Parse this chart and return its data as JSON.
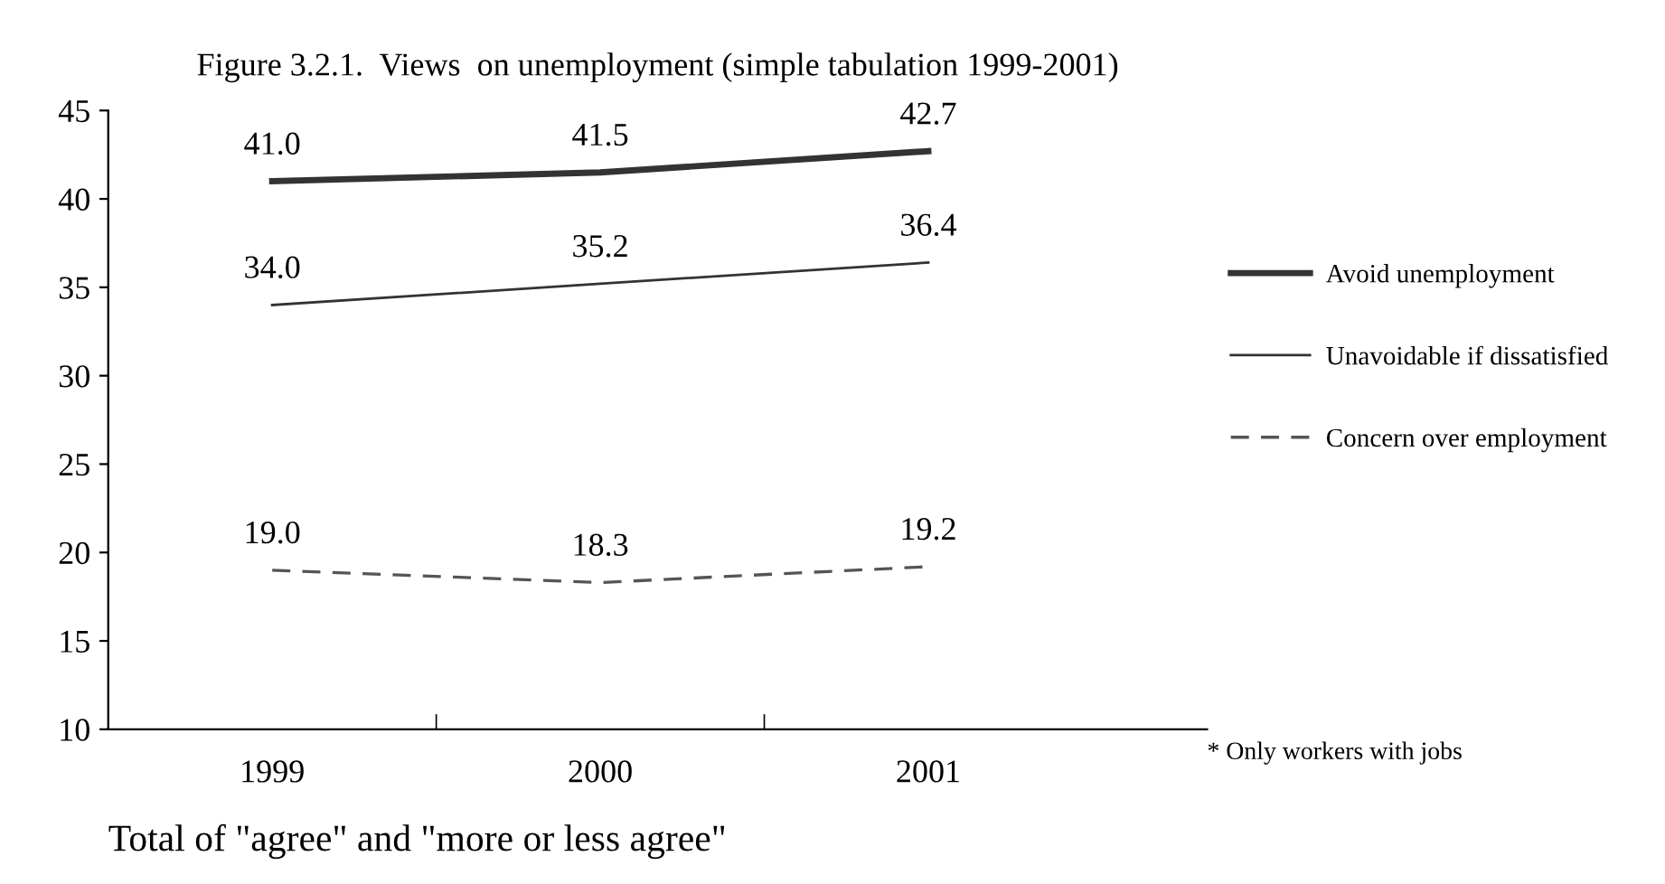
{
  "chart_data": {
    "type": "line",
    "title": "Figure 3.2.1.  Views  on unemployment (simple tabulation 1999-2001)",
    "xlabel": "Total of \"agree\" and \"more or less agree\"",
    "categories": [
      "1999",
      "2000",
      "2001"
    ],
    "series": [
      {
        "name": "Avoid unemployment",
        "color": "#333333",
        "values": [
          41.0,
          41.5,
          42.7
        ],
        "value_labels": [
          "41.0",
          "41.5",
          "42.7"
        ],
        "line_style": "solid"
      },
      {
        "name": "Unavoidable if dissatisfied",
        "color": "#333333",
        "values": [
          34.0,
          35.2,
          36.4
        ],
        "value_labels": [
          "34.0",
          "35.2",
          "36.4"
        ],
        "line_style": "solid"
      },
      {
        "name": "Concern over employment",
        "color": "#555555",
        "values": [
          19.0,
          18.3,
          19.2
        ],
        "value_labels": [
          "19.0",
          "18.3",
          "19.2"
        ],
        "line_style": "dashed"
      }
    ],
    "ylim": [
      10,
      45
    ],
    "yticks": [
      10,
      15,
      20,
      25,
      30,
      35,
      40,
      45
    ],
    "legend": "right",
    "grid": false,
    "marker": "none",
    "annotations": [
      "* Only workers with jobs"
    ]
  }
}
